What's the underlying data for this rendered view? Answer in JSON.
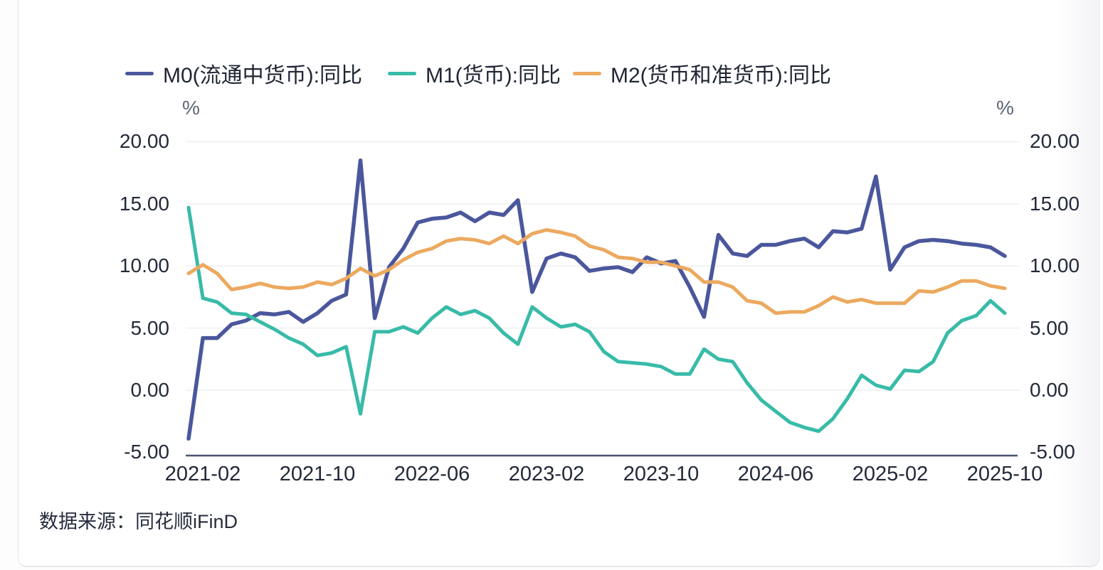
{
  "source": {
    "text": "数据来源：同花顺iFinD"
  },
  "chart_data": {
    "type": "line",
    "title": "",
    "unit": "%",
    "x_start": "2021-01",
    "x_end": "2025-10",
    "x_count": 58,
    "x_frequency": "monthly",
    "grid": true,
    "legend_position": "top",
    "ylim": [
      -5,
      20
    ],
    "y_ticks": [
      {
        "value": 20,
        "label": "20.00"
      },
      {
        "value": 15,
        "label": "15.00"
      },
      {
        "value": 10,
        "label": "10.00"
      },
      {
        "value": 5,
        "label": "5.00"
      },
      {
        "value": 0,
        "label": "0.00"
      },
      {
        "value": -5,
        "label": "-5.00"
      }
    ],
    "x_ticks": [
      {
        "index": 1,
        "label": "2021-02"
      },
      {
        "index": 9,
        "label": "2021-10"
      },
      {
        "index": 17,
        "label": "2022-06"
      },
      {
        "index": 25,
        "label": "2023-02"
      },
      {
        "index": 33,
        "label": "2023-10"
      },
      {
        "index": 41,
        "label": "2024-06"
      },
      {
        "index": 49,
        "label": "2025-02"
      },
      {
        "index": 57,
        "label": "2025-10"
      }
    ],
    "series": [
      {
        "id": "m0",
        "name": "M0(流通中货币):同比",
        "color": "#4b579c",
        "values": [
          -3.9,
          4.2,
          4.2,
          5.3,
          5.6,
          6.2,
          6.1,
          6.3,
          5.5,
          6.2,
          7.2,
          7.7,
          18.5,
          5.8,
          9.9,
          11.4,
          13.5,
          13.8,
          13.9,
          14.3,
          13.6,
          14.3,
          14.1,
          15.3,
          7.9,
          10.6,
          11.0,
          10.7,
          9.6,
          9.8,
          9.9,
          9.5,
          10.7,
          10.2,
          10.4,
          8.3,
          5.9,
          12.5,
          11.0,
          10.8,
          11.7,
          11.7,
          12.0,
          12.2,
          11.5,
          12.8,
          12.7,
          13.0,
          17.2,
          9.7,
          11.5,
          12.0,
          12.1,
          12.0,
          11.8,
          11.7,
          11.5,
          10.8
        ]
      },
      {
        "id": "m1",
        "name": "M1(货币):同比",
        "color": "#38bba8",
        "values": [
          14.7,
          7.4,
          7.1,
          6.2,
          6.1,
          5.5,
          4.9,
          4.2,
          3.7,
          2.8,
          3.0,
          3.5,
          -1.9,
          4.7,
          4.7,
          5.1,
          4.6,
          5.8,
          6.7,
          6.1,
          6.4,
          5.8,
          4.6,
          3.7,
          6.7,
          5.8,
          5.1,
          5.3,
          4.7,
          3.1,
          2.3,
          2.2,
          2.1,
          1.9,
          1.3,
          1.3,
          3.3,
          2.5,
          2.3,
          0.6,
          -0.8,
          -1.7,
          -2.6,
          -3.0,
          -3.3,
          -2.3,
          -0.7,
          1.2,
          0.4,
          0.1,
          1.6,
          1.5,
          2.3,
          4.6,
          5.6,
          6.0,
          7.2,
          6.2
        ]
      },
      {
        "id": "m2",
        "name": "M2(货币和准货币):同比",
        "color": "#eca95f",
        "values": [
          9.4,
          10.1,
          9.4,
          8.1,
          8.3,
          8.6,
          8.3,
          8.2,
          8.3,
          8.7,
          8.5,
          9.0,
          9.8,
          9.2,
          9.7,
          10.5,
          11.1,
          11.4,
          12.0,
          12.2,
          12.1,
          11.8,
          12.4,
          11.8,
          12.6,
          12.9,
          12.7,
          12.4,
          11.6,
          11.3,
          10.7,
          10.6,
          10.3,
          10.3,
          10.0,
          9.7,
          8.7,
          8.7,
          8.3,
          7.2,
          7.0,
          6.2,
          6.3,
          6.3,
          6.8,
          7.5,
          7.1,
          7.3,
          7.0,
          7.0,
          7.0,
          8.0,
          7.9,
          8.3,
          8.8,
          8.8,
          8.4,
          8.2
        ]
      }
    ]
  }
}
